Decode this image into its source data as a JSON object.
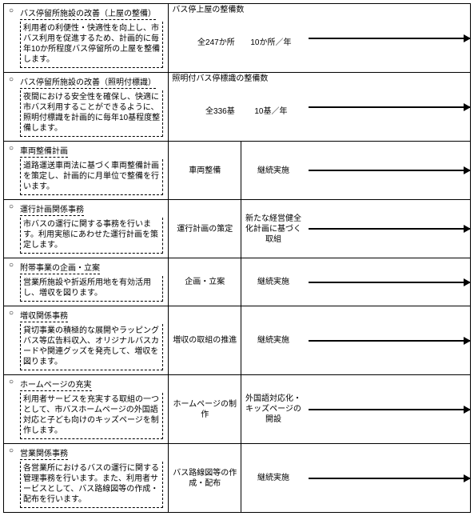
{
  "rows": [
    {
      "title": "バス停留所施設の改善（上屋の整備）",
      "body": "利用者の利便性・快適性を向上し、市バス利用を促進するため、計画的に毎年10か所程度バス停留所の上屋を整備します。",
      "metric_header": "バス停上屋の整備数",
      "metric_left": "全247か所",
      "metric_right": "10か所／年",
      "type": "metric"
    },
    {
      "title": "バス停留所施設の改善（照明付標識）",
      "body": "夜間における安全性を確保し、快適に市バス利用することができるように、照明付標識を計画的に毎年10基程度整備します。",
      "metric_header": "照明付バス停標識の整備数",
      "metric_left": "全336基",
      "metric_right": "10基／年",
      "type": "metric"
    },
    {
      "title": "車両整備計画",
      "body": "道路運送車両法に基づく車両整備計画を策定し、計画的に月単位で整備を行います。",
      "mid1": "車両整備",
      "mid2": "継続実施",
      "type": "two"
    },
    {
      "title": "運行計画関係事務",
      "body": "市バスの運行に関する事務を行います。利用実態にあわせた運行計画を策定します。",
      "mid1": "運行計画の策定",
      "mid2": "新たな経営健全化計画に基づく取組",
      "type": "two"
    },
    {
      "title": "附帯事業の企画・立案",
      "body": "営業所施設や折返所用地を有効活用し、増収を図ります。",
      "mid1": "企画・立案",
      "mid2": "継続実施",
      "type": "two"
    },
    {
      "title": "増収関係事務",
      "body": "貸切事業の積極的な展開やラッピングバス等広告料収入、オリジナルバスカードや関連グッズを発売して、増収を図ります。",
      "mid1": "増収の取組の推進",
      "mid2": "継続実施",
      "type": "two"
    },
    {
      "title": "ホームページの充実",
      "body": "利用者サービスを充実する取組の一つとして、市バスホームページの外国語対応と子ども向けのキッズページを制作します。",
      "mid1": "ホームページの制作",
      "mid2": "外国語対応化・キッズページの開設",
      "type": "two"
    },
    {
      "title": "営業関係事務",
      "body": "各営業所におけるバスの運行に関する管理事務を行います。また、利用者サービスとして、バス路線図等の作成・配布を行います。",
      "mid1": "バス路線図等の作成・配布",
      "mid2": "継続実施",
      "type": "two"
    }
  ]
}
